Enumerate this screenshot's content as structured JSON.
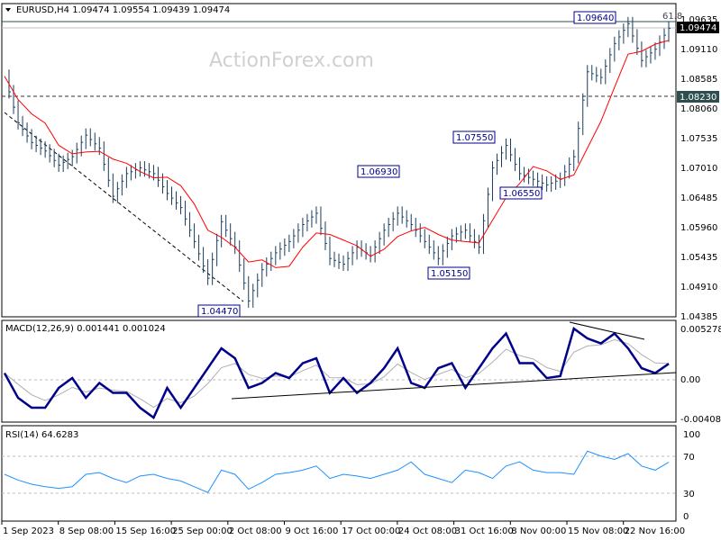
{
  "header": {
    "symbol": "EURUSD,H4",
    "open": "1.09474",
    "high": "1.09554",
    "low": "1.09439",
    "close": "1.09474"
  },
  "watermark": "ActionForex.com",
  "colors": {
    "bars": "#1a3d5c",
    "ma": "#ff0000",
    "macd": "#00008b",
    "signal": "#b0b0b0",
    "rsi": "#1e90ff",
    "price_tag": "#000000",
    "level_tag": "#2f4f4f"
  },
  "chart_data": [
    {
      "type": "ohlc-bar",
      "title": "EURUSD,H4",
      "ylim": [
        1.04385,
        1.09635
      ],
      "yticks": [
        "1.09635",
        "1.09110",
        "1.08585",
        "1.08060",
        "1.07535",
        "1.07010",
        "1.06485",
        "1.05960",
        "1.05435",
        "1.04910",
        "1.04385"
      ],
      "xticks": [
        "1 Sep 2023",
        "8 Sep 08:00",
        "15 Sep 16:00",
        "25 Sep 00:00",
        "2 Oct 08:00",
        "9 Oct 16:00",
        "17 Oct 00:00",
        "24 Oct 08:00",
        "31 Oct 16:00",
        "8 Nov 00:00",
        "15 Nov 08:00",
        "22 Nov 16:00"
      ],
      "close": [
        1.0862,
        1.078,
        1.0745,
        1.073,
        1.0705,
        1.072,
        1.0758,
        1.0735,
        1.065,
        1.069,
        1.07,
        1.069,
        1.0655,
        1.063,
        1.057,
        1.0505,
        1.0605,
        1.056,
        1.0465,
        1.052,
        1.055,
        1.057,
        1.06,
        1.062,
        1.054,
        1.053,
        1.056,
        1.0545,
        1.059,
        1.062,
        1.06,
        1.057,
        1.054,
        1.058,
        1.059,
        1.056,
        1.07,
        1.074,
        1.069,
        1.068,
        1.067,
        1.068,
        1.072,
        1.087,
        1.086,
        1.092,
        1.0955,
        1.089,
        1.091,
        1.0947
      ],
      "current_price": "1.09474",
      "level": "1.08230",
      "high_line": "1.09640",
      "fib_label": "61.8",
      "annotations": [
        "1.09640",
        "1.07550",
        "1.06930",
        "1.06550",
        "1.05150",
        "1.04470"
      ]
    },
    {
      "type": "line",
      "title": "MACD(12,26,9) 0.001441 0.001024",
      "ylim": [
        -0.004087,
        0.005278
      ],
      "yticks": [
        "0.005278",
        "0.00",
        "-0.004087"
      ],
      "macd": [
        0.0005,
        -0.002,
        -0.003,
        -0.003,
        -0.001,
        0.0,
        -0.002,
        -0.0005,
        -0.0015,
        -0.0015,
        -0.003,
        -0.004,
        -0.001,
        -0.003,
        -0.001,
        0.001,
        0.003,
        0.002,
        -0.001,
        -0.0005,
        0.0005,
        0.0,
        0.0015,
        0.002,
        -0.0015,
        0.0,
        -0.0015,
        -0.0005,
        0.001,
        0.003,
        -0.0005,
        -0.001,
        0.001,
        0.0015,
        -0.001,
        0.001,
        0.003,
        0.0045,
        0.0015,
        0.0015,
        0.0,
        0.0002,
        0.005,
        0.004,
        0.0035,
        0.0045,
        0.003,
        0.001,
        0.0005,
        0.00144
      ]
    },
    {
      "type": "line",
      "title": "RSI(14) 64.6283",
      "ylim": [
        0,
        100
      ],
      "yticks": [
        "100",
        "70",
        "30",
        "0"
      ],
      "rsi": [
        50,
        43,
        38,
        35,
        33,
        35,
        50,
        52,
        45,
        40,
        48,
        50,
        45,
        42,
        35,
        28,
        55,
        50,
        32,
        40,
        50,
        52,
        55,
        60,
        45,
        50,
        48,
        45,
        50,
        55,
        65,
        50,
        45,
        40,
        55,
        52,
        45,
        60,
        65,
        55,
        52,
        52,
        50,
        78,
        72,
        68,
        75,
        60,
        55,
        64.6
      ]
    }
  ]
}
